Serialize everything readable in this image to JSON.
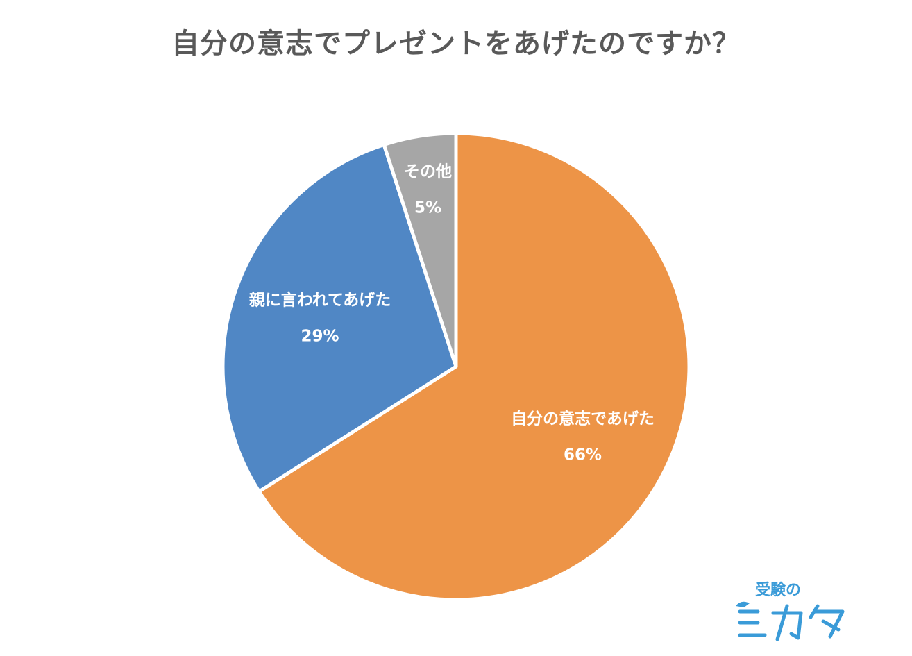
{
  "chart_data": {
    "type": "pie",
    "title": "自分の意志でプレゼントをあげたのですか？",
    "slices": [
      {
        "label": "自分の意志であげた",
        "value": 66,
        "value_label": "66%",
        "color": "#ED9447"
      },
      {
        "label": "親に言われてあげた",
        "value": 29,
        "value_label": "29%",
        "color": "#5087C5"
      },
      {
        "label": "その他",
        "value": 5,
        "value_label": "5%",
        "color": "#A6A6A6"
      }
    ],
    "start": "12 o'clock",
    "direction": "clockwise",
    "legend": "none"
  },
  "brand": {
    "line1": "受験の",
    "line2": "ミカタ",
    "color": "#3A9BD8"
  }
}
